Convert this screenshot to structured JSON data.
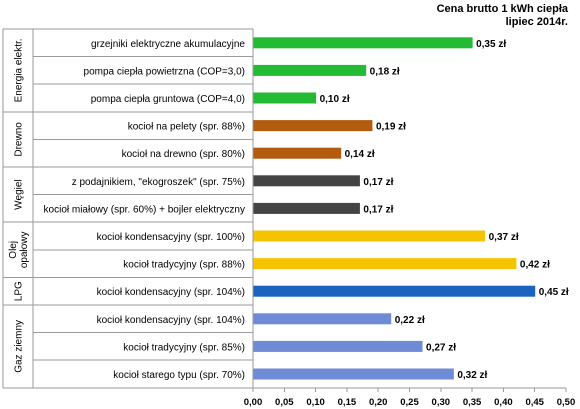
{
  "chart_data": {
    "type": "bar",
    "orientation": "horizontal",
    "title": "Cena brutto 1 kWh ciepła",
    "subtitle": "lipiec 2014r.",
    "xlim": [
      0,
      0.5
    ],
    "x_ticks": [
      "0,00",
      "0,05",
      "0,10",
      "0,15",
      "0,20",
      "0,25",
      "0,30",
      "0,35",
      "0,40",
      "0,45",
      "0,50"
    ],
    "grid": false,
    "legend": "none",
    "groups": [
      {
        "name": "Energia elektr.",
        "label_lines": [
          "Energia elektr."
        ],
        "color": "#22bb33",
        "bars": [
          {
            "category": "grzejniki elektryczne akumulacyjne",
            "value": 0.35,
            "label": "0,35 zł"
          },
          {
            "category": "pompa ciepła powietrzna (COP=3,0)",
            "value": 0.18,
            "label": "0,18 zł"
          },
          {
            "category": "pompa ciepła gruntowa (COP=4,0)",
            "value": 0.1,
            "label": "0,10 zł"
          }
        ]
      },
      {
        "name": "Drewno",
        "label_lines": [
          "Drewno"
        ],
        "color": "#b35c0f",
        "bars": [
          {
            "category": "kocioł na pelety (spr. 88%)",
            "value": 0.19,
            "label": "0,19 zł"
          },
          {
            "category": "kocioł na drewno (spr. 80%)",
            "value": 0.14,
            "label": "0,14 zł"
          }
        ]
      },
      {
        "name": "Węgiel",
        "label_lines": [
          "Węgiel"
        ],
        "color": "#444444",
        "bars": [
          {
            "category": "z podajnikiem, \"ekogroszek\" (spr. 75%)",
            "value": 0.17,
            "label": "0,17 zł"
          },
          {
            "category": "kocioł miałowy (spr. 60%) + bojler elektryczny",
            "value": 0.17,
            "label": "0,17 zł"
          }
        ]
      },
      {
        "name": "Olej opałowy",
        "label_lines": [
          "Olej",
          "opałowy"
        ],
        "color": "#f5c400",
        "bars": [
          {
            "category": "kocioł kondensacyjny (spr. 100%)",
            "value": 0.37,
            "label": "0,37 zł"
          },
          {
            "category": "kocioł tradycyjny (spr. 88%)",
            "value": 0.42,
            "label": "0,42 zł"
          }
        ]
      },
      {
        "name": "LPG",
        "label_lines": [
          "LPG"
        ],
        "color": "#1a64c0",
        "bars": [
          {
            "category": "kocioł kondensacyjny (spr. 104%)",
            "value": 0.45,
            "label": "0,45 zł"
          }
        ]
      },
      {
        "name": "Gaz ziemny",
        "label_lines": [
          "Gaz ziemny"
        ],
        "color": "#6f8bd6",
        "bars": [
          {
            "category": "kocioł kondensacyjny (spr. 104%)",
            "value": 0.22,
            "label": "0,22 zł"
          },
          {
            "category": "kocioł tradycyjny (spr. 85%)",
            "value": 0.27,
            "label": "0,27 zł"
          },
          {
            "category": "kocioł starego typu (spr. 70%)",
            "value": 0.32,
            "label": "0,32 zł"
          }
        ]
      }
    ]
  }
}
